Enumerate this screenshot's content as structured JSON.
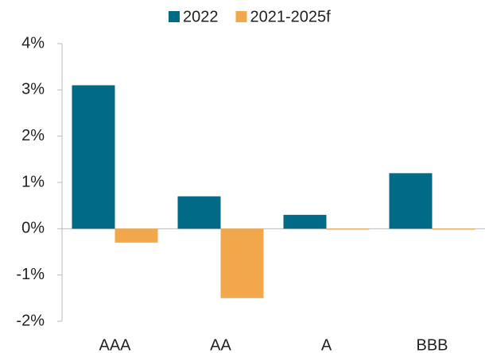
{
  "chart_data": {
    "type": "bar",
    "categories": [
      "AAA",
      "AA",
      "A",
      "BBB"
    ],
    "series": [
      {
        "name": "2022",
        "color": "#006a87",
        "values": [
          3.1,
          0.7,
          0.3,
          1.2
        ]
      },
      {
        "name": "2021-2025f",
        "color": "#f2a84a",
        "values": [
          -0.3,
          -1.5,
          -0.02,
          -0.02
        ]
      }
    ],
    "ylim": [
      -2,
      4
    ],
    "yticks": [
      {
        "value": -2,
        "label": "-2%"
      },
      {
        "value": -1,
        "label": "-1%"
      },
      {
        "value": 0,
        "label": "0%"
      },
      {
        "value": 1,
        "label": "1%"
      },
      {
        "value": 2,
        "label": "2%"
      },
      {
        "value": 3,
        "label": "3%"
      },
      {
        "value": 4,
        "label": "4%"
      }
    ],
    "grid": false,
    "legend": "top"
  }
}
